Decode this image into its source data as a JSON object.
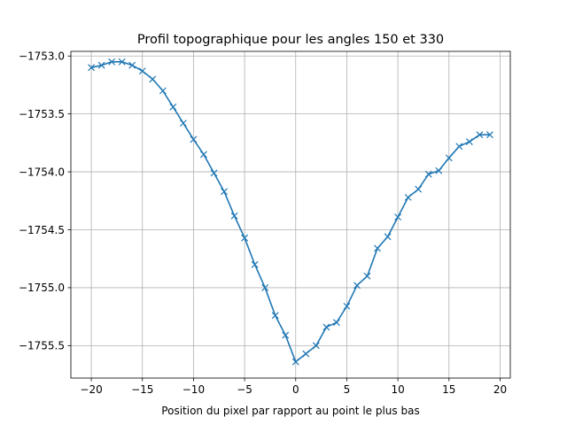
{
  "chart_data": {
    "type": "line",
    "title": "Profil topographique pour les angles 150 et 330",
    "xlabel": "Position du pixel par rapport au point le plus bas",
    "ylabel": "",
    "xlim": [
      -22,
      21
    ],
    "ylim": [
      -1755.78,
      -1752.96
    ],
    "xticks": [
      -20,
      -15,
      -10,
      -5,
      0,
      5,
      10,
      15,
      20
    ],
    "yticks": [
      -1753.0,
      -1753.5,
      -1754.0,
      -1754.5,
      -1755.0,
      -1755.5
    ],
    "xtick_labels": [
      "−20",
      "−15",
      "−10",
      "−5",
      "0",
      "5",
      "10",
      "15",
      "20"
    ],
    "ytick_labels": [
      "−1753.0",
      "−1753.5",
      "−1754.0",
      "−1754.5",
      "−1755.0",
      "−1755.5"
    ],
    "grid": true,
    "marker": "x",
    "color": "#1f77b4",
    "series": [
      {
        "x": [
          -20,
          -19,
          -18,
          -17,
          -16,
          -15,
          -14,
          -13,
          -12,
          -11,
          -10,
          -9,
          -8,
          -7,
          -6,
          -5,
          -4,
          -3,
          -2,
          -1,
          0,
          1,
          2,
          3,
          4,
          5,
          6,
          7,
          8,
          9,
          10,
          11,
          12,
          13,
          14,
          15,
          16,
          17,
          18,
          19
        ],
        "y": [
          -1753.1,
          -1753.08,
          -1753.05,
          -1753.05,
          -1753.08,
          -1753.13,
          -1753.2,
          -1753.3,
          -1753.44,
          -1753.58,
          -1753.72,
          -1753.85,
          -1754.01,
          -1754.17,
          -1754.38,
          -1754.57,
          -1754.8,
          -1755.0,
          -1755.24,
          -1755.41,
          -1755.64,
          -1755.57,
          -1755.5,
          -1755.34,
          -1755.3,
          -1755.16,
          -1754.98,
          -1754.9,
          -1754.66,
          -1754.56,
          -1754.39,
          -1754.22,
          -1754.15,
          -1754.02,
          -1753.99,
          -1753.88,
          -1753.78,
          -1753.74,
          -1753.68,
          -1753.68
        ]
      }
    ]
  }
}
